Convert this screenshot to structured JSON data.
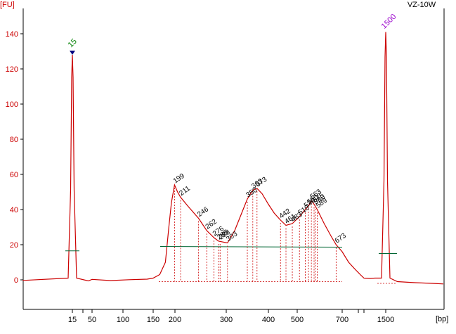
{
  "sample": "VZ-10W",
  "chart_data": {
    "type": "line",
    "title": "",
    "sample_name": "VZ-10W",
    "ylabel": "[FU]",
    "xlabel": "[bp]",
    "ylim": [
      -14,
      155
    ],
    "y_ticks": [
      0,
      20,
      40,
      60,
      80,
      100,
      120,
      140
    ],
    "x_ticks": [
      "15",
      "50",
      "100",
      "150",
      "200",
      "300",
      "400",
      "500",
      "700",
      "1500"
    ],
    "x_scale": "nonlinear (electrophoresis migration)",
    "line_color": "#cc0000",
    "grid": false,
    "markers": [
      {
        "label": "15",
        "size_bp": 15,
        "height": 128,
        "label_color": "#008000",
        "type": "lower marker"
      },
      {
        "label": "1500",
        "size_bp": 1500,
        "height": 141,
        "label_color": "#9900cc",
        "type": "upper marker"
      }
    ],
    "peak_labels": [
      "199",
      "211",
      "246",
      "262",
      "276",
      "285",
      "288",
      "303",
      "350",
      "363",
      "373",
      "442",
      "461",
      "483",
      "510",
      "536",
      "550",
      "563",
      "575",
      "580",
      "589",
      "673"
    ],
    "trace": {
      "x": [
        3,
        15,
        50,
        100,
        150,
        199,
        211,
        246,
        262,
        285,
        303,
        350,
        373,
        442,
        461,
        510,
        563,
        589,
        673,
        800,
        1200,
        1500,
        1700
      ],
      "y": [
        0,
        128,
        0,
        0,
        5,
        54,
        47,
        35,
        27,
        22,
        21,
        45,
        52,
        35,
        31,
        37,
        44,
        40,
        20,
        5,
        0,
        141,
        0
      ]
    },
    "smear_region": {
      "from_bp": 150,
      "to_bp": 700,
      "baseline": 19,
      "line_color": "#006633"
    }
  }
}
